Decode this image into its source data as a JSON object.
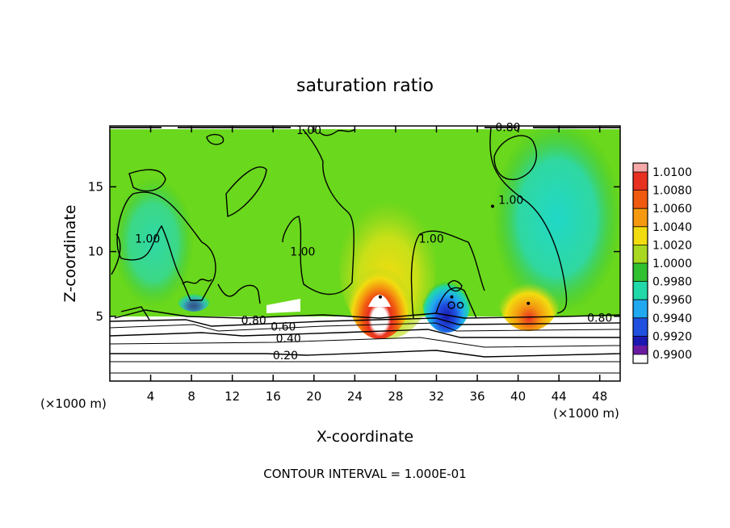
{
  "chart_data": {
    "type": "heatmap",
    "title": "saturation ratio",
    "xlabel": "X-coordinate",
    "ylabel": "Z-coordinate",
    "x_unit_label": "(×1000 m)",
    "y_unit_label": "(×1000 m)",
    "footer": "CONTOUR INTERVAL = 1.000E-01",
    "xlim": [
      0,
      50
    ],
    "ylim": [
      0,
      19.7
    ],
    "x_ticks": [
      4,
      8,
      12,
      16,
      20,
      24,
      28,
      32,
      36,
      40,
      44,
      48
    ],
    "y_ticks": [
      5,
      10,
      15
    ],
    "colorbar": {
      "levels": [
        "1.0100",
        "1.0080",
        "1.0060",
        "1.0040",
        "1.0020",
        "1.0000",
        "0.9980",
        "0.9960",
        "0.9940",
        "0.9920",
        "0.9900"
      ],
      "colors": [
        "#f7a8a8",
        "#e83020",
        "#f05a10",
        "#f59a10",
        "#f2dc10",
        "#a8d820",
        "#30c030",
        "#20d8a8",
        "#20a8f0",
        "#2050e0",
        "#1a18b0",
        "#6a1aa0"
      ]
    },
    "background_level": "1.0000",
    "contour_labels": [
      {
        "text": "1.00",
        "x": 19.5,
        "y": 19.4
      },
      {
        "text": "0.80",
        "x": 39.0,
        "y": 19.6
      },
      {
        "text": "1.00",
        "x": 3.7,
        "y": 11.0
      },
      {
        "text": "1.00",
        "x": 18.9,
        "y": 10.0
      },
      {
        "text": "1.00",
        "x": 31.5,
        "y": 11.0
      },
      {
        "text": "1.00",
        "x": 39.3,
        "y": 14.0
      },
      {
        "text": "0.80",
        "x": 14.1,
        "y": 4.7
      },
      {
        "text": "0.60",
        "x": 17.0,
        "y": 4.2
      },
      {
        "text": "0.40",
        "x": 17.5,
        "y": 3.3
      },
      {
        "text": "0.20",
        "x": 17.2,
        "y": 2.0
      },
      {
        "text": "0.80",
        "x": 48.0,
        "y": 4.9
      }
    ],
    "features": [
      {
        "type": "max",
        "x": 26.5,
        "y": 6.5,
        "value": "1.0100"
      },
      {
        "type": "max",
        "x": 41.0,
        "y": 6.0,
        "value": "1.0040"
      },
      {
        "type": "min",
        "x": 33.5,
        "y": 6.5,
        "value": "0.9900"
      },
      {
        "type": "min",
        "x": 37.5,
        "y": 13.5,
        "value": "0.9960"
      }
    ]
  }
}
